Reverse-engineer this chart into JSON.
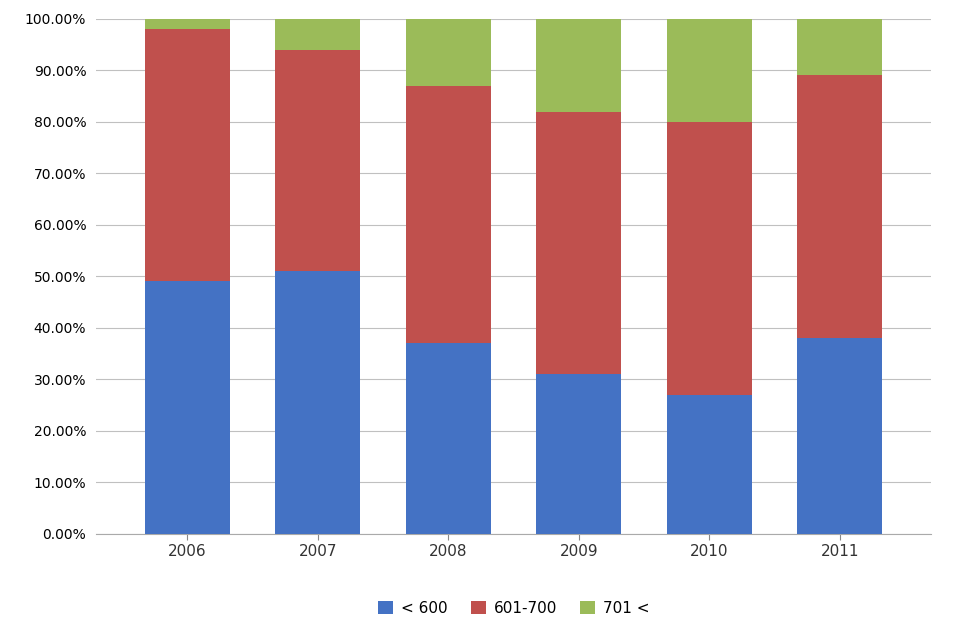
{
  "years": [
    "2006",
    "2007",
    "2008",
    "2009",
    "2010",
    "2011"
  ],
  "below_600": [
    0.49,
    0.51,
    0.37,
    0.31,
    0.27,
    0.38
  ],
  "mid_600_700": [
    0.49,
    0.43,
    0.5,
    0.51,
    0.53,
    0.51
  ],
  "above_700": [
    0.02,
    0.06,
    0.13,
    0.18,
    0.2,
    0.16
  ],
  "color_below_600": "#4472C4",
  "color_mid": "#C0504D",
  "color_above_700": "#9BBB59",
  "legend_labels": [
    "< 600",
    "601-700",
    "701 <"
  ],
  "ylim": [
    0.0,
    1.0
  ],
  "yticks": [
    0.0,
    0.1,
    0.2,
    0.3,
    0.4,
    0.5,
    0.6,
    0.7,
    0.8,
    0.9,
    1.0
  ],
  "bar_width": 0.65,
  "background_color": "#FFFFFF",
  "grid_color": "#C0C0C0",
  "spine_color": "#AAAAAA"
}
